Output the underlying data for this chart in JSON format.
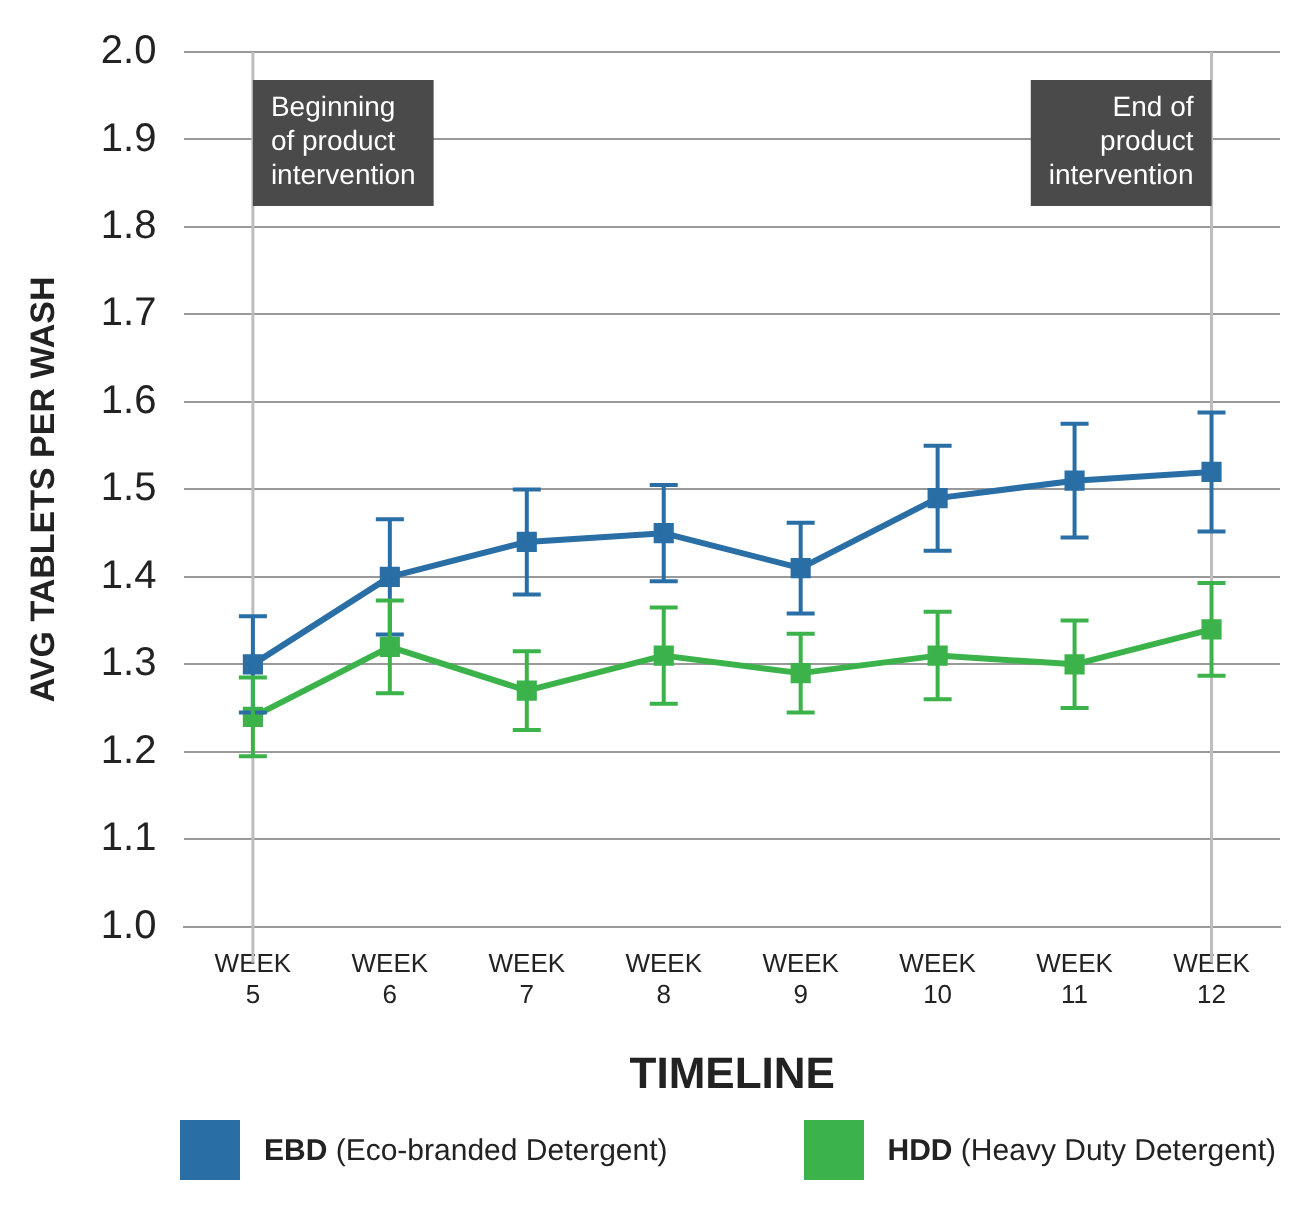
{
  "chart_data": {
    "type": "line",
    "xlabel": "TIMELINE",
    "ylabel": "AVG TABLETS PER WASH",
    "categories": [
      "WEEK\n5",
      "WEEK\n6",
      "WEEK\n7",
      "WEEK\n8",
      "WEEK\n9",
      "WEEK\n10",
      "WEEK\n11",
      "WEEK\n12"
    ],
    "series": [
      {
        "name": "EBD (Eco-branded Detergent)",
        "color": "#2a6ea6",
        "values": [
          1.3,
          1.4,
          1.44,
          1.45,
          1.41,
          1.49,
          1.51,
          1.52
        ],
        "errors": [
          0.055,
          0.066,
          0.06,
          0.055,
          0.052,
          0.06,
          0.065,
          0.068
        ]
      },
      {
        "name": "HDD (Heavy Duty Detergent)",
        "color": "#3bb34a",
        "values": [
          1.24,
          1.32,
          1.27,
          1.31,
          1.29,
          1.31,
          1.3,
          1.34
        ],
        "errors": [
          0.045,
          0.053,
          0.045,
          0.055,
          0.045,
          0.05,
          0.05,
          0.053
        ]
      }
    ],
    "ylim": [
      1.0,
      2.0
    ],
    "yticks": [
      {
        "value": 1.0,
        "label": "1.0"
      },
      1.1,
      1.2,
      1.3,
      1.4,
      1.5,
      1.6,
      1.7,
      1.8,
      1.9,
      {
        "value": 2.0,
        "label": "2.0"
      }
    ],
    "ref_lines": [
      {
        "axis": "x",
        "value": "WEEK\n5",
        "label": "Beginning\nof product\nintervention",
        "color": "#bdbdbd"
      },
      {
        "axis": "x",
        "value": "WEEK\n12",
        "label": "End of\nproduct\nintervention",
        "color": "#bdbdbd"
      }
    ],
    "grid": "y",
    "legend": "bottom",
    "marker": "square",
    "line_style": "solid"
  }
}
